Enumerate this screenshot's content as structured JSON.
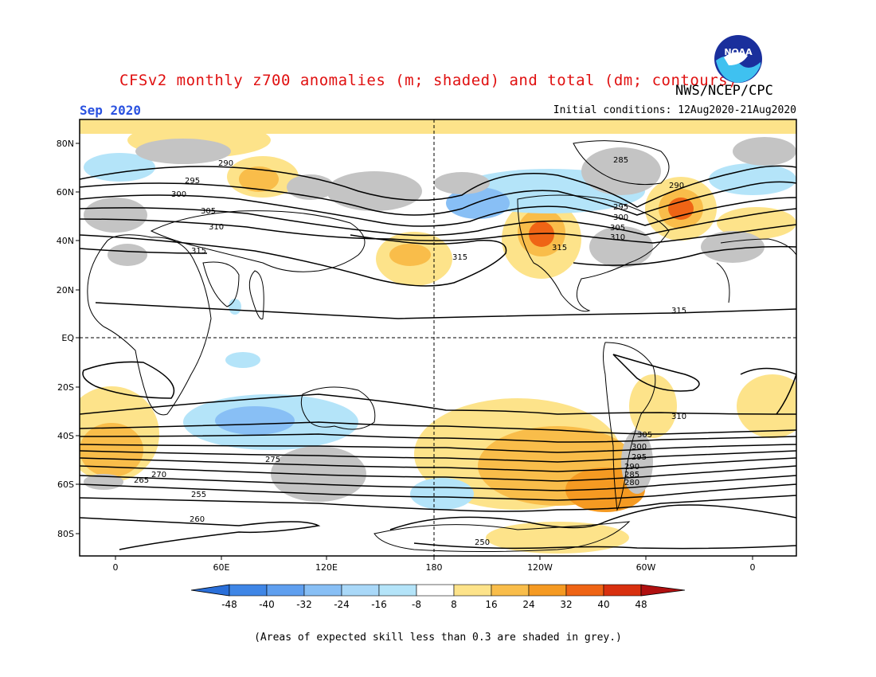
{
  "header": {
    "title": "CFSv2 monthly z700 anomalies (m; shaded) and total (dm; contours)",
    "org": "NWS/NCEP/CPC",
    "month": "Sep 2020",
    "initial_conditions": "Initial conditions: 12Aug2020-21Aug2020",
    "logo_text": "NOAA"
  },
  "map": {
    "lat_labels": [
      "80N",
      "60N",
      "40N",
      "20N",
      "EQ",
      "20S",
      "40S",
      "60S",
      "80S"
    ],
    "lon_labels": [
      "0",
      "60E",
      "120E",
      "180",
      "120W",
      "60W",
      "0"
    ],
    "contour_labels": [
      "290",
      "295",
      "300",
      "305",
      "310",
      "315",
      "285",
      "290",
      "295",
      "300",
      "305",
      "310",
      "315",
      "315",
      "315",
      "310",
      "305",
      "300",
      "295",
      "290",
      "285",
      "280",
      "275",
      "270",
      "265",
      "260",
      "255",
      "250"
    ]
  },
  "colorbar": {
    "ticks": [
      "-48",
      "-40",
      "-32",
      "-24",
      "-16",
      "-8",
      "8",
      "16",
      "24",
      "32",
      "40",
      "48"
    ],
    "colors": [
      "#2a6fd9",
      "#3f86e6",
      "#5f9fef",
      "#88bff5",
      "#b4e4f9",
      "#ffffff",
      "#fde38a",
      "#f9bd4a",
      "#f59a22",
      "#ef6415",
      "#d8300f",
      "#b01010"
    ]
  },
  "footer": {
    "caption": "(Areas of expected skill less than 0.3 are shaded in grey.)"
  }
}
